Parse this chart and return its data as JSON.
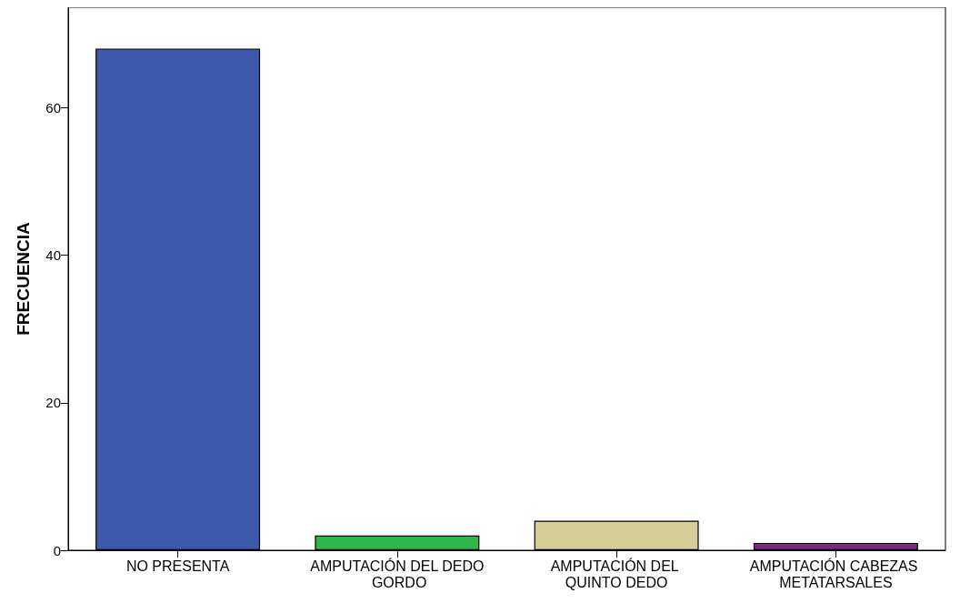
{
  "chart_data": {
    "type": "bar",
    "ylabel": "FRECUENCIA",
    "categories": [
      "NO PRESENTA",
      "AMPUTACIÓN DEL DEDO GORDO",
      "AMPUTACIÓN DEL QUINTO DEDO",
      "AMPUTACIÓN CABEZAS METATARSALES"
    ],
    "values": [
      68,
      2,
      4,
      1
    ],
    "colors": [
      "#3e58ac",
      "#2fb54a",
      "#d4cf99",
      "#7a2a80"
    ],
    "ylim": [
      0,
      73.6
    ],
    "yticks": [
      0,
      20,
      40,
      60
    ]
  }
}
